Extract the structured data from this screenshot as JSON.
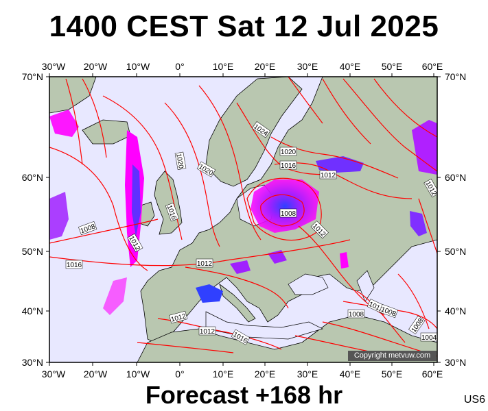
{
  "title": "1400 CEST Sat 12 Jul 2025",
  "footer": "Forecast +168 hr",
  "model": "US6",
  "copyright": "Copyright metvuw.com",
  "lon_labels": [
    "30°W",
    "20°W",
    "10°W",
    "0°",
    "10°E",
    "20°E",
    "30°E",
    "40°E",
    "50°E",
    "60°E"
  ],
  "lat_labels": [
    "70°N",
    "60°N",
    "50°N",
    "40°N",
    "30°N"
  ],
  "isobar_labels": [
    "1024",
    "1020",
    "1020",
    "1020",
    "1016",
    "1016",
    "1012",
    "1008",
    "1008",
    "1012",
    "1016",
    "1012",
    "1012",
    "1012",
    "1012",
    "1012",
    "1016",
    "1008",
    "1012",
    "1008",
    "1004",
    "1008",
    "1012"
  ],
  "colors": {
    "isobar": "#ff0000",
    "ocean": "#e8e8ff",
    "land": "#b9c7b0",
    "precip_low": "#ff00ff",
    "precip_high": "#2020ff"
  }
}
